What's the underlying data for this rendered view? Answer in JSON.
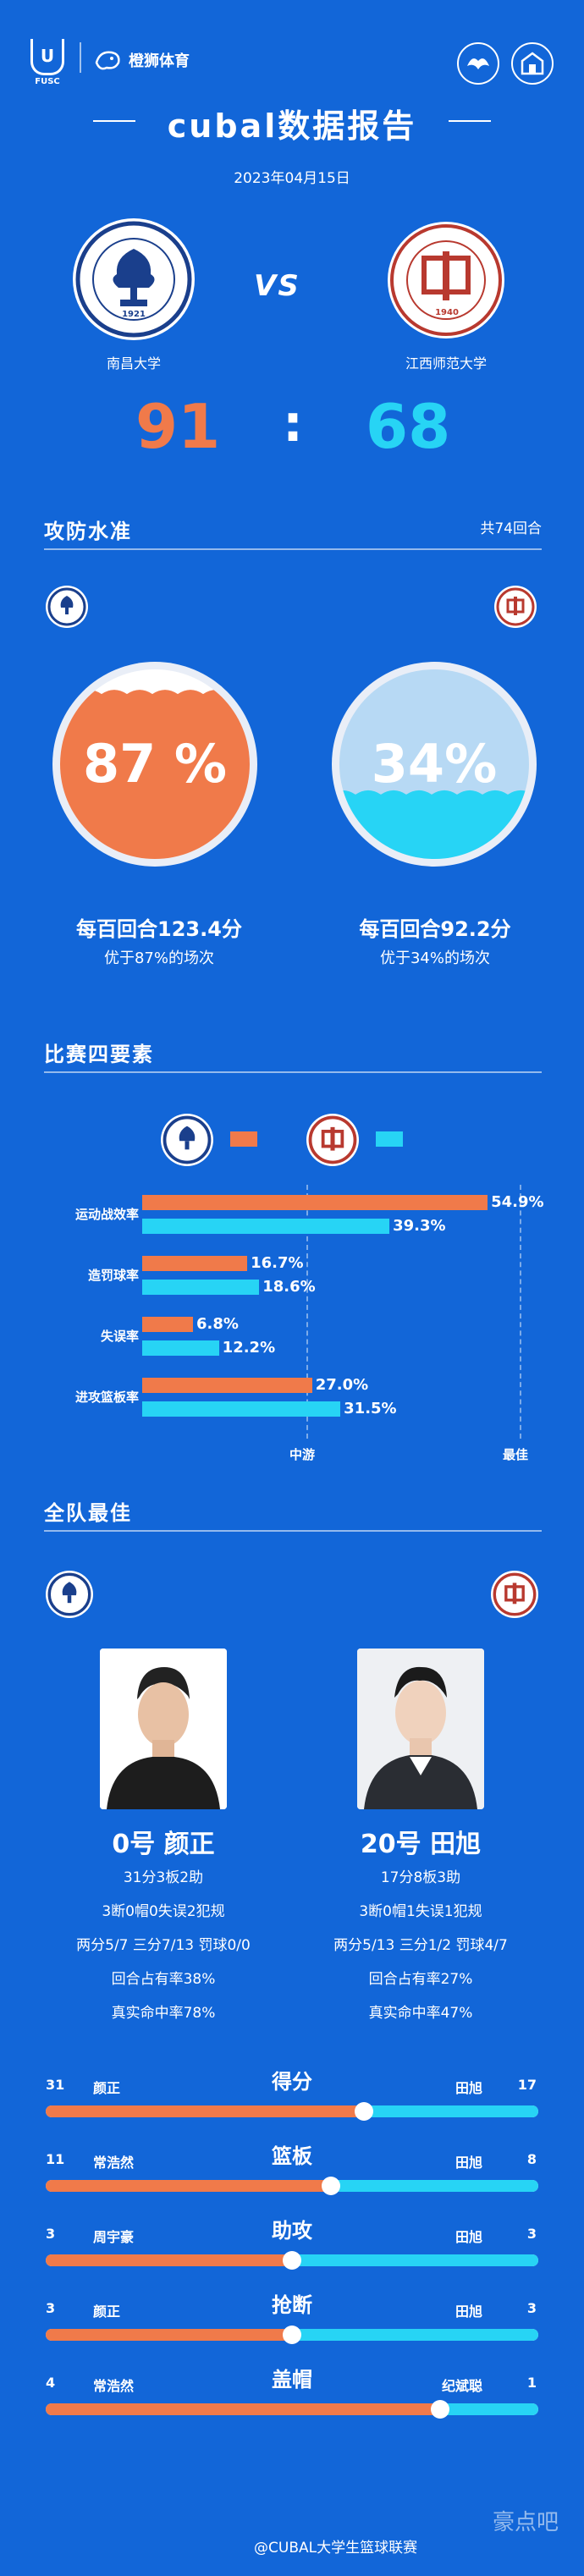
{
  "header": {
    "brand_u": "U",
    "brand_fusc": "FUSC",
    "brand_name": "橙狮体育",
    "title": "cubal数据报告",
    "date": "2023年04月15日"
  },
  "match": {
    "vs": "VS",
    "team_home": "南昌大学",
    "team_away": "江西师范大学",
    "home_logo_year": "1921",
    "away_logo_year": "1940",
    "score_home": "91",
    "score_sep": ":",
    "score_away": "68"
  },
  "efficiency": {
    "title": "攻防水准",
    "rounds": "共74回合",
    "home_pct": "87 %",
    "home_pct_value": 87,
    "away_pct": "34%",
    "away_pct_value": 34,
    "home_rate": "每百回合123.4分",
    "home_better": "优于87%的场次",
    "away_rate": "每百回合92.2分",
    "away_better": "优于34%的场次"
  },
  "four_factors": {
    "title": "比赛四要素",
    "mid_label": "中游",
    "best_label": "最佳",
    "rows": [
      {
        "label": "运动战效率",
        "home": "54.9%",
        "home_v": 54.9,
        "away": "39.3%",
        "away_v": 39.3
      },
      {
        "label": "造罚球率",
        "home": "16.7%",
        "home_v": 16.7,
        "away": "18.6%",
        "away_v": 18.6
      },
      {
        "label": "失误率",
        "home": "6.8%",
        "home_v": 6.8,
        "away": "12.2%",
        "away_v": 12.2
      },
      {
        "label": "进攻篮板率",
        "home": "27.0%",
        "home_v": 27.0,
        "away": "31.5%",
        "away_v": 31.5
      }
    ]
  },
  "best_players": {
    "title": "全队最佳",
    "home": {
      "name": "0号  颜正",
      "line1": "31分3板2助",
      "line2": "3断0帽0失误2犯规",
      "line3": "两分5/7 三分7/13 罚球0/0",
      "line4": "回合占有率38%",
      "line5": "真实命中率78%"
    },
    "away": {
      "name": "20号  田旭",
      "line1": "17分8板3助",
      "line2": "3断0帽1失误1犯规",
      "line3": "两分5/13 三分1/2 罚球4/7",
      "line4": "回合占有率27%",
      "line5": "真实命中率47%"
    }
  },
  "leaders": [
    {
      "stat": "得分",
      "home_val": "31",
      "home_name": "颜正",
      "away_name": "田旭",
      "away_val": "17",
      "home_n": 31,
      "away_n": 17
    },
    {
      "stat": "篮板",
      "home_val": "11",
      "home_name": "常浩然",
      "away_name": "田旭",
      "away_val": "8",
      "home_n": 11,
      "away_n": 8
    },
    {
      "stat": "助攻",
      "home_val": "3",
      "home_name": "周宇豪",
      "away_name": "田旭",
      "away_val": "3",
      "home_n": 3,
      "away_n": 3
    },
    {
      "stat": "抢断",
      "home_val": "3",
      "home_name": "颜正",
      "away_name": "田旭",
      "away_val": "3",
      "home_n": 3,
      "away_n": 3
    },
    {
      "stat": "盖帽",
      "home_val": "4",
      "home_name": "常浩然",
      "away_name": "纪斌聪",
      "away_val": "1",
      "home_n": 4,
      "away_n": 1
    }
  ],
  "footer": {
    "watermark": "@CUBAL大学生篮球联赛",
    "corner_text": "豪点吧"
  },
  "colors": {
    "background": "#1266d8",
    "home": "#f07a4a",
    "away": "#27d4f5"
  }
}
